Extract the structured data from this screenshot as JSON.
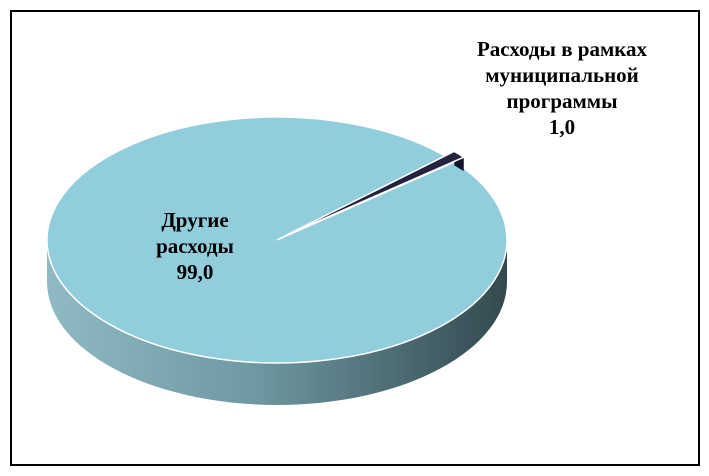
{
  "chart_data": {
    "type": "pie",
    "categories": [
      "Другие расходы",
      "Расходы в рамках муниципальной программы"
    ],
    "values": [
      99.0,
      1.0
    ],
    "value_labels": [
      "99,0",
      "1,0"
    ],
    "colors": [
      "#92cddc",
      "#23233f"
    ]
  }
}
